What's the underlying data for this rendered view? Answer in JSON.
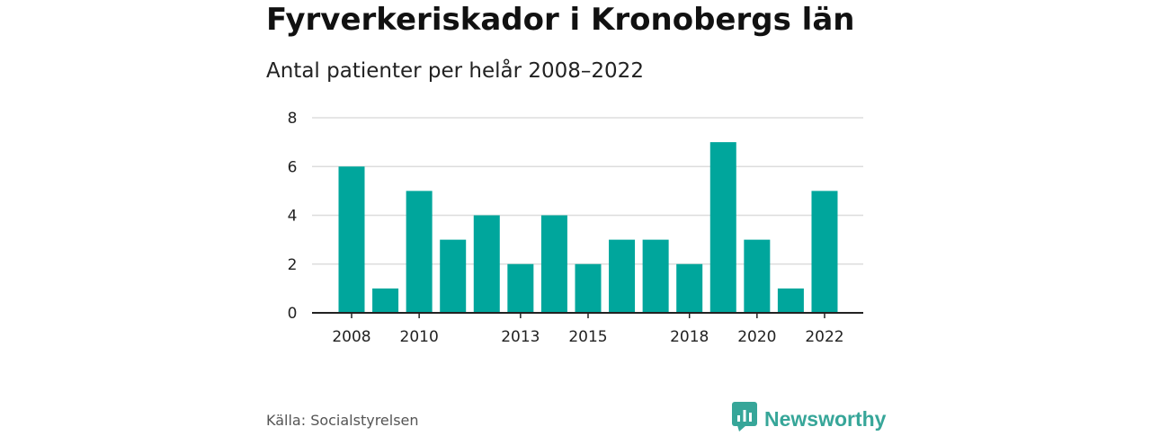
{
  "header": {
    "title": "Fyrverkeriskador i Kronobergs län",
    "subtitle": "Antal patienter per helår 2008–2022"
  },
  "chart_data": {
    "type": "bar",
    "categories": [
      "2008",
      "2009",
      "2010",
      "2011",
      "2012",
      "2013",
      "2014",
      "2015",
      "2016",
      "2017",
      "2018",
      "2019",
      "2020",
      "2021",
      "2022"
    ],
    "values": [
      6,
      1,
      5,
      3,
      4,
      2,
      4,
      2,
      3,
      3,
      2,
      7,
      3,
      1,
      5
    ],
    "x_tick_labels": [
      "2008",
      "2010",
      "2013",
      "2015",
      "2018",
      "2020",
      "2022"
    ],
    "y_ticks": [
      0,
      2,
      4,
      6,
      8
    ],
    "ylim": [
      0,
      8
    ],
    "grid": true,
    "bar_color": "#00a69c",
    "grid_color": "#dddddd",
    "axis_color": "#222222"
  },
  "footer": {
    "source": "Källa: Socialstyrelsen",
    "brand_name": "Newsworthy",
    "brand_color": "#37a699",
    "brand_icon": "bar-chart-speech-bubble-icon"
  }
}
